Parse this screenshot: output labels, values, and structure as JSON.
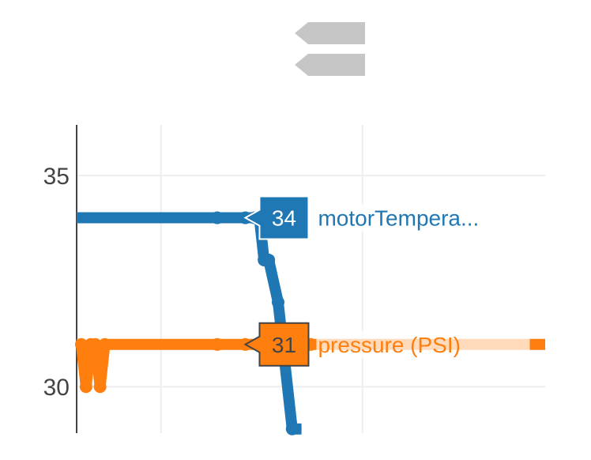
{
  "chart_data": {
    "type": "line",
    "xlabel": "",
    "ylabel": "",
    "ylim": [
      28.9,
      36.2
    ],
    "yticks": [
      30,
      35
    ],
    "grid": true,
    "series": [
      {
        "name": "motorTempera...",
        "color": "#1f77b4",
        "values": [
          [
            0,
            34
          ],
          [
            0.3,
            34
          ],
          [
            0.36,
            34
          ],
          [
            0.38,
            34
          ],
          [
            0.39,
            34
          ],
          [
            0.4,
            33
          ],
          [
            0.41,
            33
          ],
          [
            0.43,
            32
          ],
          [
            0.46,
            29
          ],
          [
            0.48,
            29
          ]
        ],
        "hover": {
          "value": "34",
          "x": 0.36
        }
      },
      {
        "name": "pressure (PSI)",
        "color": "#ff7f0e",
        "values": [
          [
            0,
            31
          ],
          [
            0.01,
            31
          ],
          [
            0.02,
            30
          ],
          [
            0.03,
            31
          ],
          [
            0.04,
            31
          ],
          [
            0.05,
            30
          ],
          [
            0.06,
            31
          ],
          [
            0.3,
            31
          ],
          [
            0.36,
            31
          ],
          [
            0.5,
            31
          ],
          [
            1,
            31
          ]
        ],
        "hover": {
          "value": "31",
          "x": 0.36
        }
      }
    ],
    "modebar": [
      {
        "name": "zoom-out-icon"
      },
      {
        "name": "reset-axes-icon"
      }
    ]
  }
}
